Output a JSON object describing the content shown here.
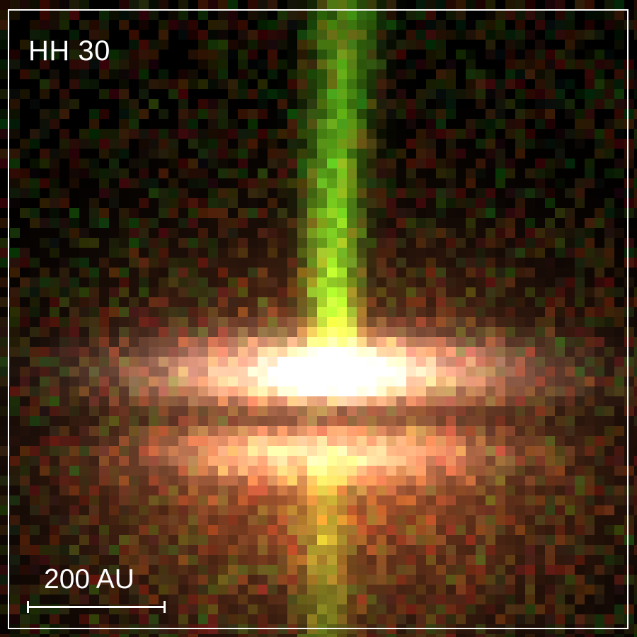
{
  "image": {
    "object_name": "HH 30",
    "scale_bar_label": "200 AU",
    "colors": {
      "jet": "#7fd12a",
      "disk_core": "#fff6ec",
      "nebula": "#b2673e",
      "background": "#000000",
      "annotation": "#ffffff"
    }
  }
}
